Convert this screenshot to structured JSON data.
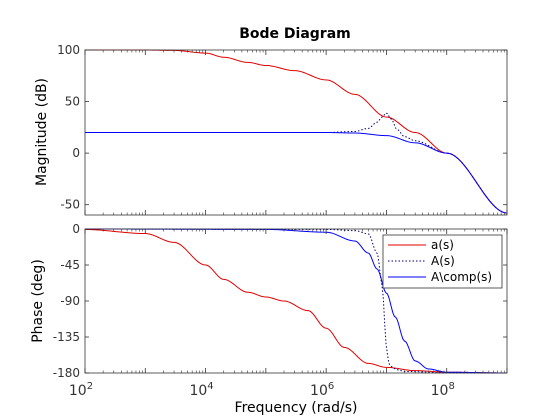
{
  "chart_data": {
    "type": "line",
    "title": "Bode Diagram",
    "xlabel": "Frequency  (rad/s)",
    "x_scale": "log",
    "xlim": [
      100,
      1000000000
    ],
    "xticks": [
      100,
      10000,
      1000000,
      100000000
    ],
    "xtick_labels": [
      "10^2",
      "10^4",
      "10^6",
      "10^8"
    ],
    "panels": [
      {
        "name": "magnitude",
        "ylabel": "Magnitude (dB)",
        "ylim": [
          -60,
          100
        ],
        "yticks": [
          100,
          50,
          0,
          -50
        ],
        "ytick_labels": [
          "100",
          "50",
          "0",
          "-50"
        ],
        "grid": false,
        "series": [
          {
            "name": "a(s)",
            "color": "#e00000",
            "dash": "solid",
            "x": [
              100,
              1000,
              3000,
              10000,
              20000,
              50000,
              100000,
              300000,
              1000000,
              3000000,
              10000000,
              30000000,
              100000000,
              1000000000
            ],
            "y": [
              100,
              100,
              99.6,
              97,
              93,
              88,
              85,
              80,
              71,
              57,
              35,
              20,
              0,
              -58
            ]
          },
          {
            "name": "A(s)",
            "color": "#000080",
            "dash": "dotted",
            "x": [
              100,
              1000000,
              3000000,
              5000000,
              7000000,
              8500000,
              10000000,
              12000000,
              15000000,
              20000000,
              30000000,
              100000000,
              1000000000
            ],
            "y": [
              20,
              20,
              21,
              24,
              30,
              35,
              39,
              33,
              23,
              16,
              12,
              0,
              -58
            ]
          },
          {
            "name": "A\\_comp(s)",
            "color": "#0000ff",
            "dash": "solid",
            "x": [
              100,
              1000000,
              3000000,
              10000000,
              30000000,
              100000000,
              1000000000
            ],
            "y": [
              20,
              20,
              19.5,
              17,
              10,
              0,
              -58
            ]
          }
        ]
      },
      {
        "name": "phase",
        "ylabel": "Phase (deg)",
        "ylim": [
          -180,
          0
        ],
        "yticks": [
          0,
          -45,
          -90,
          -135,
          -180
        ],
        "ytick_labels": [
          "0",
          "-45",
          "-90",
          "-135",
          "-180"
        ],
        "grid": false,
        "legend": {
          "placement": "top-right",
          "entries": [
            "a(s)",
            "A(s)",
            "A\\_comp(s)"
          ]
        },
        "series": [
          {
            "name": "a(s)",
            "color": "#e00000",
            "dash": "solid",
            "x": [
              100,
              1000,
              3000,
              10000,
              20000,
              50000,
              100000,
              200000,
              500000,
              1000000,
              2000000,
              5000000,
              10000000,
              30000000,
              100000000,
              1000000000
            ],
            "y": [
              -0.6,
              -5.7,
              -16.7,
              -45,
              -63,
              -79,
              -85,
              -90,
              -102,
              -124,
              -148,
              -168,
              -173,
              -177,
              -179,
              -180
            ]
          },
          {
            "name": "A(s)",
            "color": "#000080",
            "dash": "dotted",
            "x": [
              100,
              1000000,
              3000000,
              5000000,
              7000000,
              8500000,
              9500000,
              10000000,
              11000000,
              12000000,
              15000000,
              20000000,
              100000000,
              1000000000
            ],
            "y": [
              0,
              -0.5,
              -2,
              -6,
              -30,
              -70,
              -120,
              -150,
              -168,
              -172,
              -176,
              -178,
              -180,
              -180
            ]
          },
          {
            "name": "A\\_comp(s)",
            "color": "#0000ff",
            "dash": "solid",
            "x": [
              100,
              100000,
              1000000,
              3000000,
              5000000,
              7000000,
              10000000,
              14000000,
              20000000,
              30000000,
              50000000,
              100000000,
              1000000000
            ],
            "y": [
              0,
              -0.5,
              -4,
              -15,
              -30,
              -50,
              -80,
              -110,
              -140,
              -165,
              -175,
              -179,
              -180
            ]
          }
        ]
      }
    ]
  },
  "labels": {
    "title": "Bode Diagram",
    "xlabel": "Frequency  (rad/s)",
    "mag_ylabel": "Magnitude (dB)",
    "phase_ylabel": "Phase (deg)",
    "legend": [
      "a(s)",
      "A(s)",
      "A\\_comp(s)"
    ]
  },
  "legend_display": [
    "a(s)",
    "A(s)",
    "A\\comp(s)"
  ]
}
